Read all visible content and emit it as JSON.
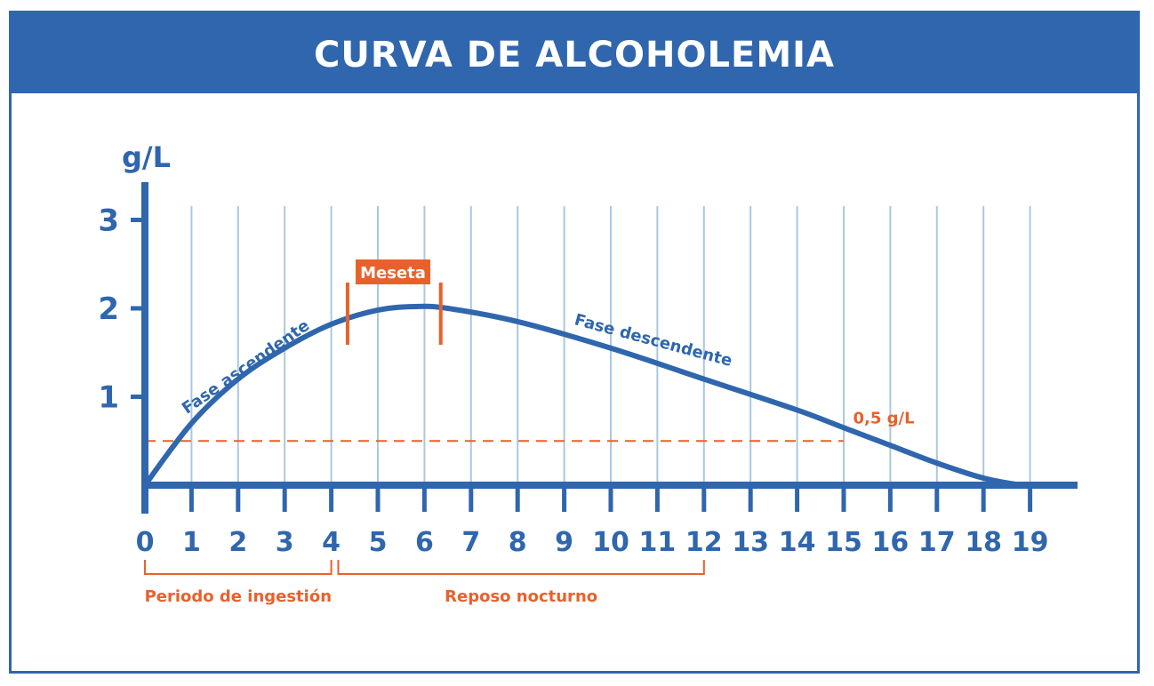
{
  "title": "CURVA DE ALCOHOLEMIA",
  "colors": {
    "blue": "#2f66ad",
    "grid": "#a9c8e0",
    "orange": "#e8612c",
    "white": "#ffffff"
  },
  "chart_data": {
    "type": "line",
    "ylabel": "g/L",
    "xlabel": "",
    "xlim": [
      0,
      19
    ],
    "ylim": [
      0,
      3
    ],
    "x_ticks": [
      "0",
      "1",
      "2",
      "3",
      "4",
      "5",
      "6",
      "7",
      "8",
      "9",
      "10",
      "11",
      "12",
      "13",
      "14",
      "15",
      "16",
      "17",
      "18",
      "19"
    ],
    "y_ticks": [
      "1",
      "2",
      "3"
    ],
    "grid": "vertical",
    "series": [
      {
        "x": [
          0,
          1,
          2,
          3,
          4,
          5,
          5.8,
          6.5,
          8,
          10,
          12,
          14,
          15,
          16,
          17,
          18,
          18.8
        ],
        "values": [
          0,
          0.7,
          1.2,
          1.55,
          1.82,
          1.98,
          2.02,
          2.0,
          1.85,
          1.55,
          1.2,
          0.85,
          0.65,
          0.45,
          0.25,
          0.08,
          0
        ]
      }
    ],
    "threshold": {
      "value": 0.5,
      "label": "0,5 g/L"
    },
    "annotations": {
      "ascending": {
        "text": "Fase ascendente"
      },
      "descending": {
        "text": "Fase descendente"
      },
      "plateau": {
        "text": "Meseta",
        "from": 4.35,
        "to": 6.35
      }
    },
    "ranges": [
      {
        "label": "Periodo de ingestión",
        "from": 0,
        "to": 4
      },
      {
        "label": "Reposo nocturno",
        "from": 4.15,
        "to": 12
      }
    ]
  }
}
